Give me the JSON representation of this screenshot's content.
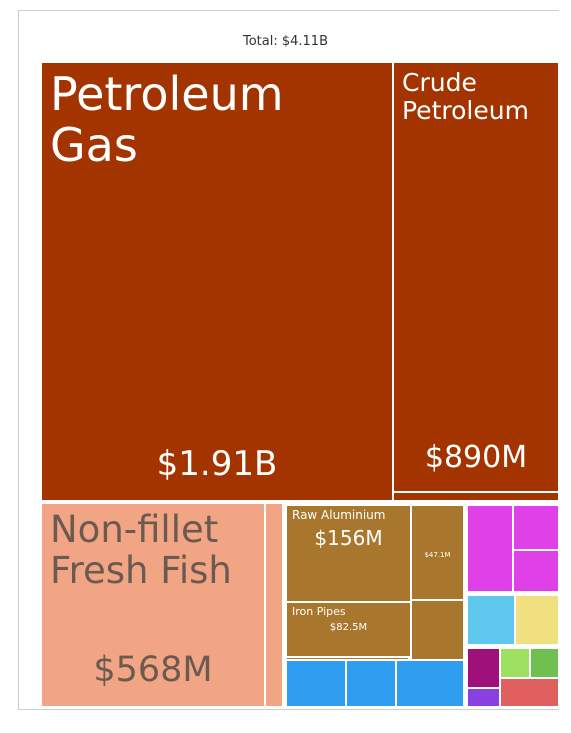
{
  "chart_data": {
    "type": "treemap",
    "title": "Total: $4.11B",
    "items": [
      {
        "name": "Petroleum Gas",
        "value": 1910000000,
        "value_label": "$1.91B",
        "color": "#a33400"
      },
      {
        "name": "Crude Petroleum",
        "value": 890000000,
        "value_label": "$890M",
        "color": "#a33400"
      },
      {
        "name": "Non-fillet Fresh Fish",
        "value": 568000000,
        "value_label": "$568M",
        "color": "#f2a584"
      },
      {
        "name": "Raw Aluminium",
        "value": 156000000,
        "value_label": "$156M",
        "color": "#a8762c"
      },
      {
        "name": "Iron Pipes",
        "value": 82500000,
        "value_label": "$82.5M",
        "color": "#a8762c"
      },
      {
        "value": 47100000,
        "value_label": "$47.1M",
        "color": "#a8762c"
      }
    ]
  }
}
